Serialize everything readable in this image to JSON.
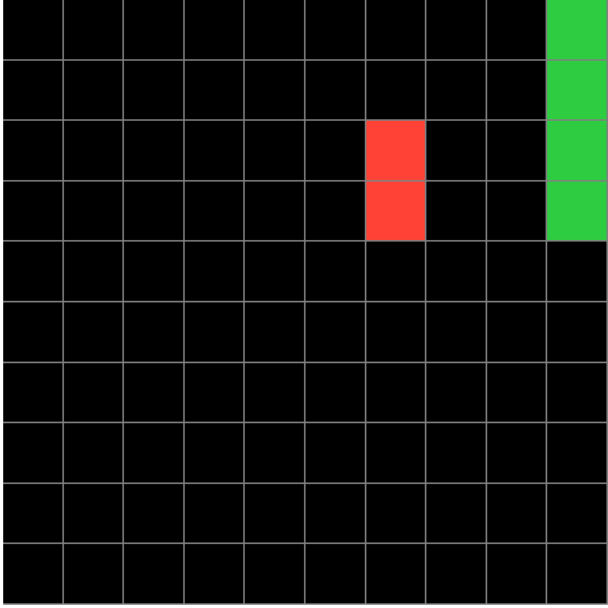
{
  "grid": {
    "rows": 10,
    "cols": 10,
    "colors": {
      "empty": "#000000",
      "grid_line": "#808080",
      "red": "#ff4136",
      "green": "#2ecc40"
    },
    "cells": [
      [
        0,
        0,
        0,
        0,
        0,
        0,
        0,
        0,
        0,
        2
      ],
      [
        0,
        0,
        0,
        0,
        0,
        0,
        0,
        0,
        0,
        2
      ],
      [
        0,
        0,
        0,
        0,
        0,
        0,
        1,
        0,
        0,
        2
      ],
      [
        0,
        0,
        0,
        0,
        0,
        0,
        1,
        0,
        0,
        2
      ],
      [
        0,
        0,
        0,
        0,
        0,
        0,
        0,
        0,
        0,
        0
      ],
      [
        0,
        0,
        0,
        0,
        0,
        0,
        0,
        0,
        0,
        0
      ],
      [
        0,
        0,
        0,
        0,
        0,
        0,
        0,
        0,
        0,
        0
      ],
      [
        0,
        0,
        0,
        0,
        0,
        0,
        0,
        0,
        0,
        0
      ],
      [
        0,
        0,
        0,
        0,
        0,
        0,
        0,
        0,
        0,
        0
      ],
      [
        0,
        0,
        0,
        0,
        0,
        0,
        0,
        0,
        0,
        0
      ]
    ],
    "legend": {
      "0": "empty",
      "1": "red",
      "2": "green"
    }
  }
}
